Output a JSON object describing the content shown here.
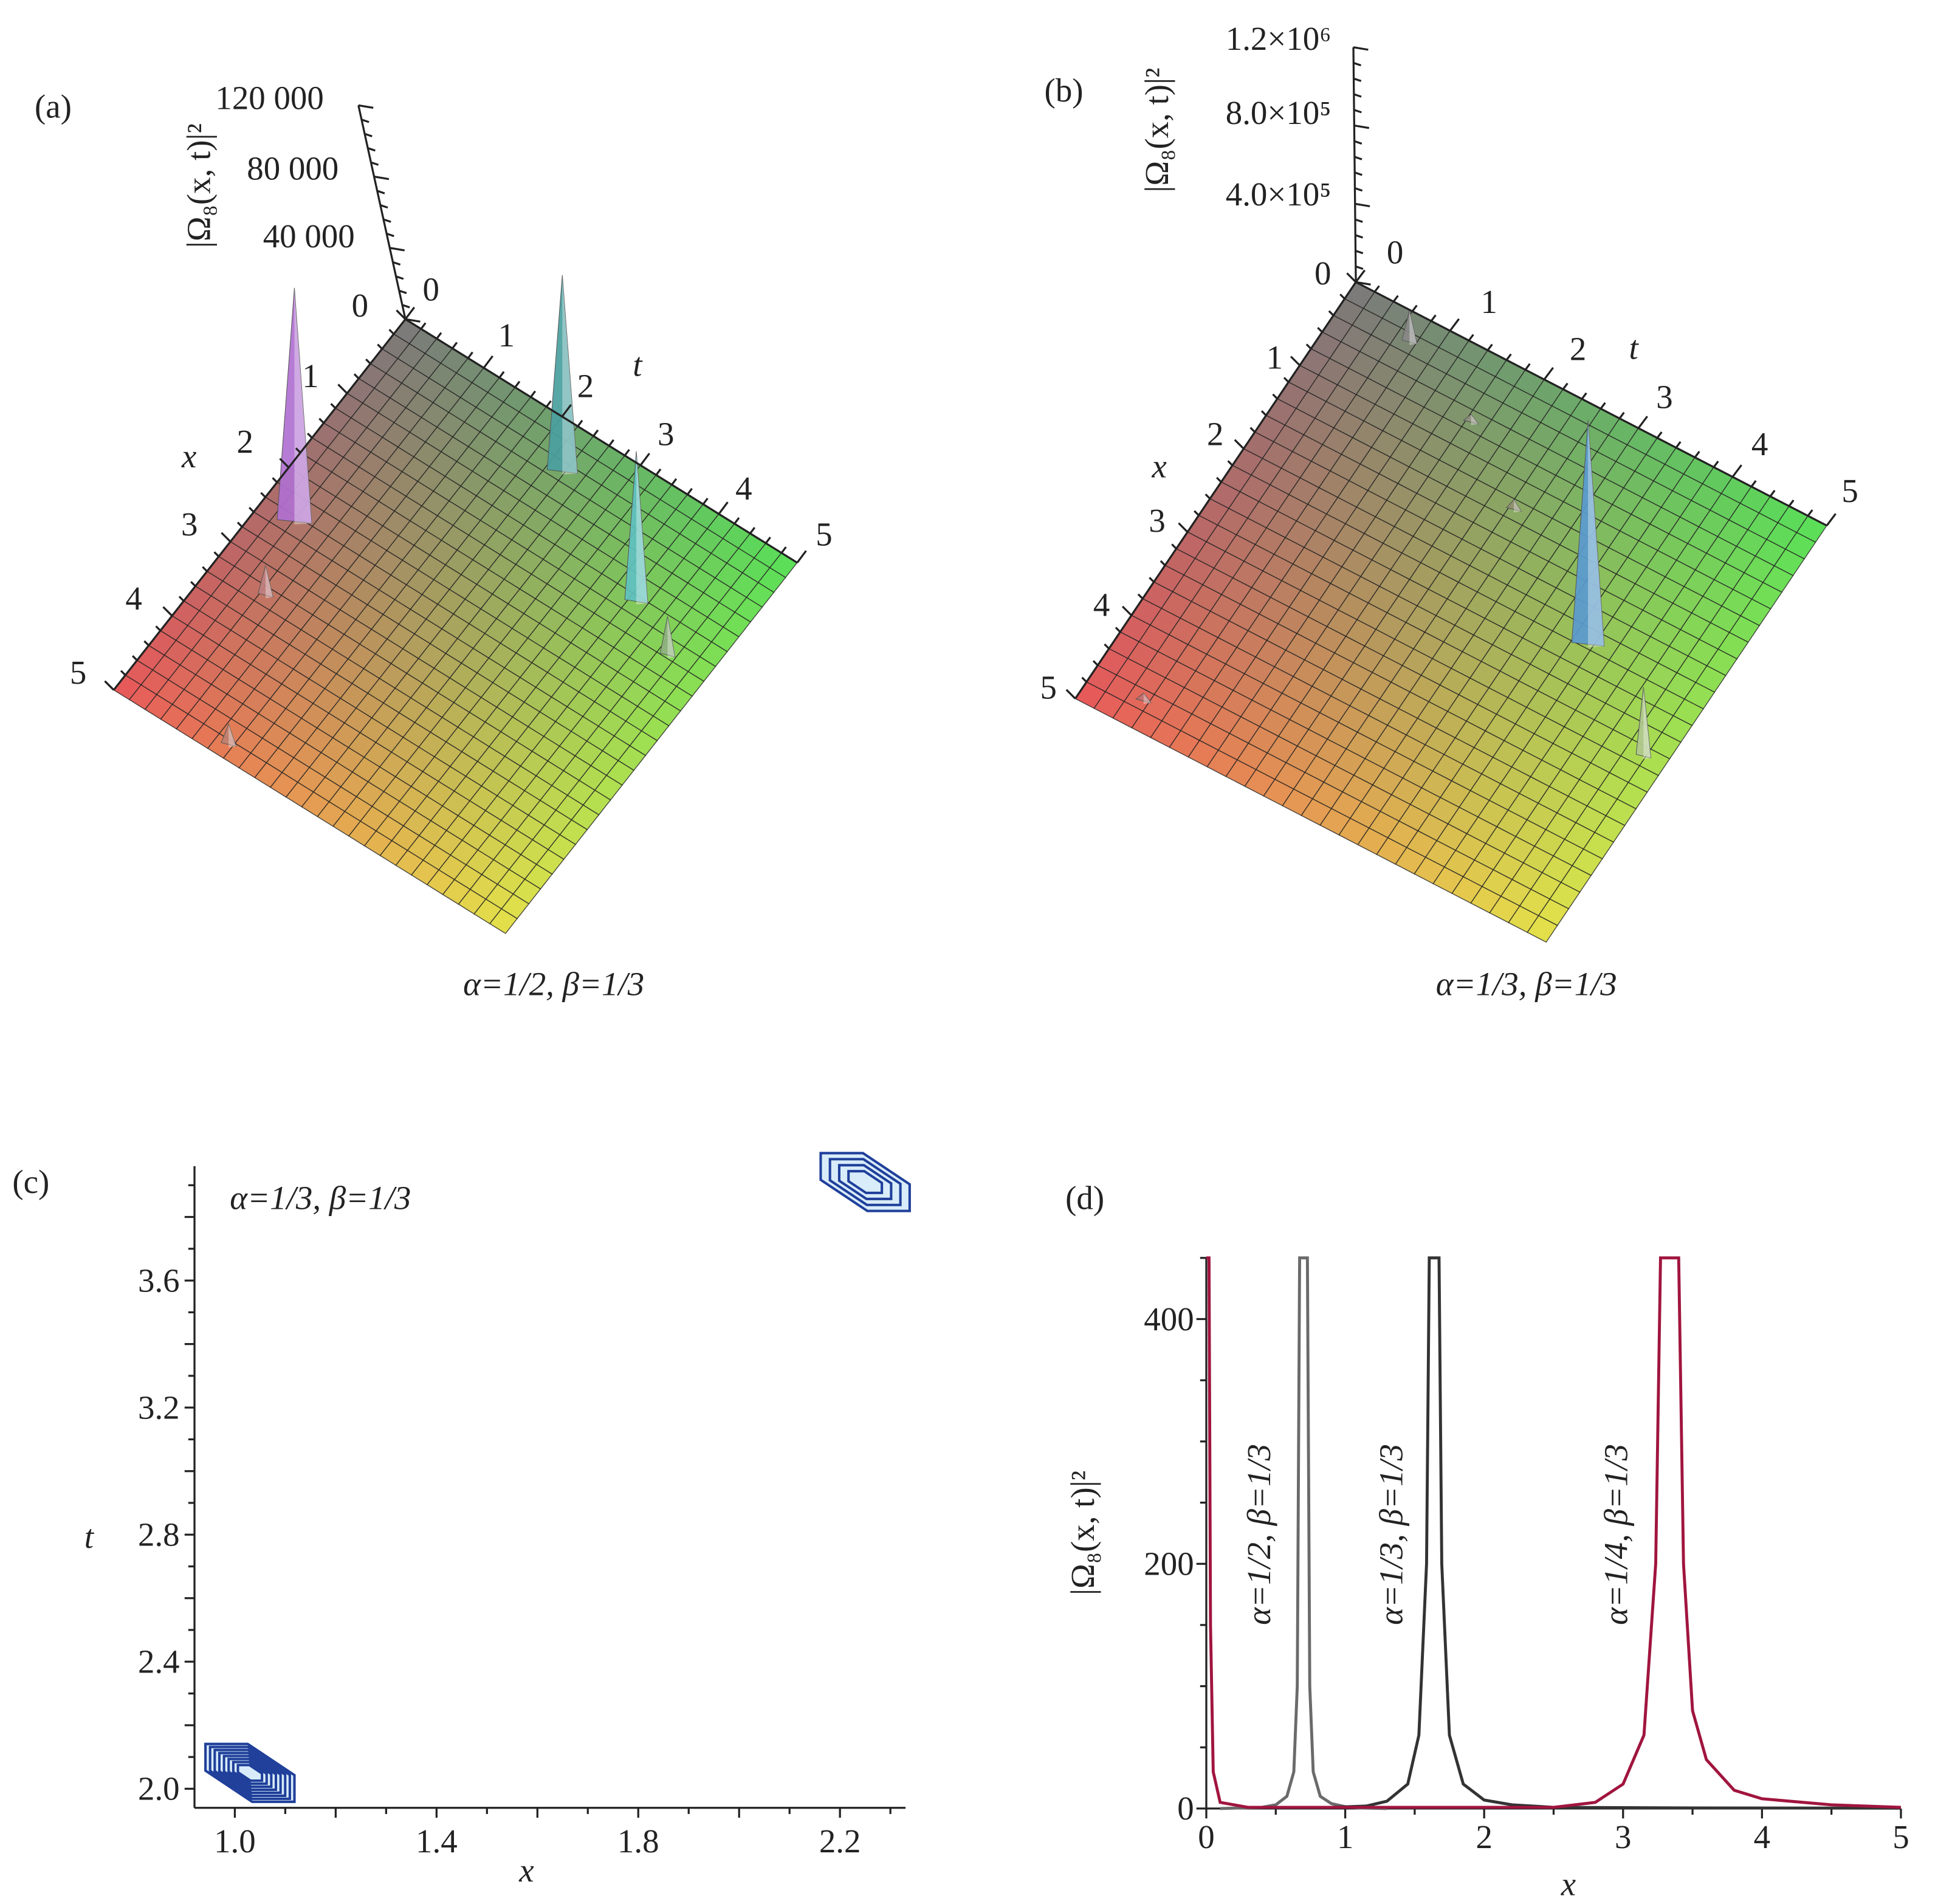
{
  "chart_data": [
    {
      "panel": "(a)",
      "type": "surface3d",
      "caption": "α=1/2, β=1/3",
      "zlabel": "|Ω₈(x, t)|²",
      "xlabel": "x",
      "tlabel": "t",
      "x_ticks": [
        "1",
        "2",
        "3",
        "4",
        "5"
      ],
      "t_ticks": [
        "0",
        "1",
        "2",
        "3",
        "4",
        "5"
      ],
      "z_ticks": [
        "0",
        "40 000",
        "80 000",
        "120 000"
      ],
      "z_tick_values": [
        0,
        40000,
        80000,
        120000
      ],
      "xlim": [
        0,
        5
      ],
      "tlim": [
        0,
        5
      ],
      "zlim": [
        0,
        120000
      ],
      "colors": {
        "origin": "#7a7a7a",
        "x_end": "#e8585a",
        "t_end": "#58e058",
        "far": "#e6e24a"
      },
      "peaks": [
        {
          "x": 2.44,
          "t": 0.4,
          "z": 125000,
          "color": "#b070d0"
        },
        {
          "x": 0.48,
          "t": 2.36,
          "z": 105000,
          "color": "#4aa0a0"
        },
        {
          "x": 1.24,
          "t": 3.87,
          "z": 80000,
          "color": "#60c0c0"
        },
        {
          "x": 1.55,
          "t": 4.5,
          "z": 20000,
          "color": "#90b080"
        },
        {
          "x": 3.27,
          "t": 0.65,
          "z": 15000,
          "color": "#c08080"
        },
        {
          "x": 4.83,
          "t": 1.34,
          "z": 10000,
          "color": "#c08070"
        }
      ]
    },
    {
      "panel": "(b)",
      "type": "surface3d",
      "caption": "α=1/3, β=1/3",
      "zlabel": "|Ω₈(x, t)|²",
      "xlabel": "x",
      "tlabel": "t",
      "x_ticks": [
        "1",
        "2",
        "3",
        "4",
        "5"
      ],
      "t_ticks": [
        "0",
        "1",
        "2",
        "3",
        "4",
        "5"
      ],
      "z_ticks": [
        "0",
        "4.0×10⁵",
        "8.0×10⁵",
        "1.2×10⁶"
      ],
      "z_tick_values": [
        0,
        400000,
        800000,
        1200000
      ],
      "xlim": [
        0,
        5
      ],
      "tlim": [
        0,
        5
      ],
      "zlim": [
        0,
        1200000
      ],
      "colors": {
        "origin": "#7a7a7a",
        "x_end": "#e8585a",
        "t_end": "#58e058",
        "far": "#e6e24a"
      },
      "peaks": [
        {
          "x": 2.14,
          "t": 3.74,
          "z": 1125000,
          "color": "#5a9ad0"
        },
        {
          "x": 2.88,
          "t": 4.77,
          "z": 340000,
          "color": "#b0c890"
        },
        {
          "x": 0.27,
          "t": 0.73,
          "z": 150000,
          "color": "#888888"
        },
        {
          "x": 1.28,
          "t": 2.44,
          "z": 40000,
          "color": "#909070"
        },
        {
          "x": 0.7,
          "t": 1.64,
          "z": 30000,
          "color": "#909080"
        },
        {
          "x": 4.69,
          "t": 0.54,
          "z": 30000,
          "color": "#c07070"
        }
      ]
    },
    {
      "panel": "(c)",
      "type": "contour",
      "annotation": "α=1/3, β=1/3",
      "xlabel": "x",
      "ylabel": "t",
      "x_ticks": [
        "1.0",
        "1.4",
        "1.8",
        "2.2"
      ],
      "x_tick_values": [
        1.0,
        1.4,
        1.8,
        2.2
      ],
      "y_ticks": [
        "2.0",
        "2.4",
        "2.8",
        "3.2",
        "3.6"
      ],
      "y_tick_values": [
        2.0,
        2.4,
        2.8,
        3.2,
        3.6
      ],
      "xlim": [
        0.92,
        2.33
      ],
      "ylim": [
        1.94,
        3.96
      ],
      "contour_color": "#1f3f9a",
      "contour_groups": [
        {
          "x": 1.03,
          "t": 2.05,
          "levels": 8
        },
        {
          "x": 2.25,
          "t": 3.91,
          "levels": 4
        }
      ]
    },
    {
      "panel": "(d)",
      "type": "line",
      "xlabel": "x",
      "ylabel": "|Ω₈(x, t)|²",
      "x_ticks": [
        "0",
        "1",
        "2",
        "3",
        "4",
        "5"
      ],
      "x_tick_values": [
        0,
        1,
        2,
        3,
        4,
        5
      ],
      "y_ticks": [
        "0",
        "200",
        "400"
      ],
      "y_tick_values": [
        0,
        200,
        400
      ],
      "xlim": [
        0,
        5
      ],
      "ylim": [
        0,
        450
      ],
      "series": [
        {
          "name": "α=1/2, β=1/3",
          "color": "#6a6a6a",
          "label_x": 0.38,
          "points": [
            [
              0.1,
              0
            ],
            [
              0.4,
              1
            ],
            [
              0.5,
              3
            ],
            [
              0.58,
              10
            ],
            [
              0.63,
              30
            ],
            [
              0.655,
              100
            ],
            [
              0.672,
              450
            ],
            [
              0.728,
              450
            ],
            [
              0.745,
              100
            ],
            [
              0.77,
              30
            ],
            [
              0.82,
              10
            ],
            [
              0.9,
              4
            ],
            [
              1.0,
              1.5
            ],
            [
              1.1,
              0.5
            ],
            [
              1.3,
              0
            ]
          ]
        },
        {
          "name": "α=1/3, β=1/3",
          "color": "#333333",
          "label_x": 1.33,
          "points": [
            [
              0.9,
              1
            ],
            [
              1.15,
              2
            ],
            [
              1.3,
              6
            ],
            [
              1.45,
              20
            ],
            [
              1.53,
              60
            ],
            [
              1.585,
              200
            ],
            [
              1.605,
              450
            ],
            [
              1.675,
              450
            ],
            [
              1.695,
              200
            ],
            [
              1.75,
              60
            ],
            [
              1.85,
              20
            ],
            [
              2.0,
              7
            ],
            [
              2.2,
              3
            ],
            [
              2.5,
              1
            ],
            [
              3.5,
              0.5
            ],
            [
              5,
              0.3
            ]
          ]
        },
        {
          "name": "α=1/4, β=1/3",
          "color": "#a0153e",
          "label_x": 2.95,
          "points": [
            [
              0,
              450
            ],
            [
              0.02,
              450
            ],
            [
              0.03,
              150
            ],
            [
              0.05,
              30
            ],
            [
              0.1,
              5
            ],
            [
              0.3,
              1
            ],
            [
              2.5,
              1
            ],
            [
              2.8,
              5
            ],
            [
              3.0,
              20
            ],
            [
              3.15,
              60
            ],
            [
              3.235,
              200
            ],
            [
              3.27,
              450
            ],
            [
              3.4,
              450
            ],
            [
              3.435,
              200
            ],
            [
              3.5,
              80
            ],
            [
              3.6,
              40
            ],
            [
              3.8,
              15
            ],
            [
              4.0,
              8
            ],
            [
              4.5,
              3
            ],
            [
              5,
              1
            ]
          ]
        }
      ]
    }
  ]
}
